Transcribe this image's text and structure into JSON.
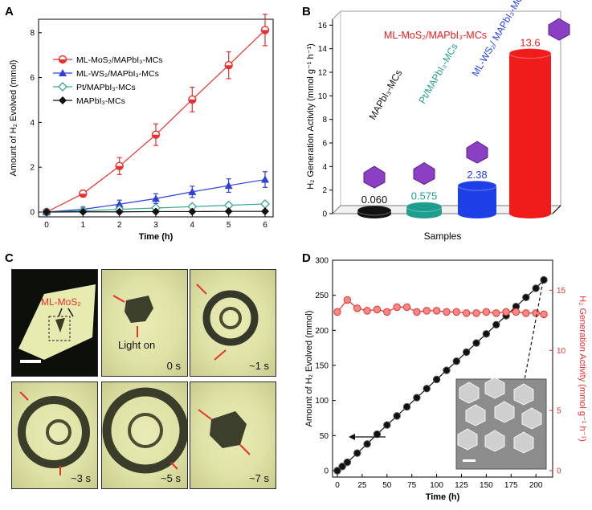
{
  "panels": {
    "a": "A",
    "b": "B",
    "c": "C",
    "d": "D"
  },
  "chart_data": [
    {
      "type": "line",
      "panel": "A",
      "xlabel": "Time (h)",
      "ylabel": "Amount of H₂ Evolved (mmol)",
      "xlim": [
        0,
        6
      ],
      "ylim": [
        0,
        8.6
      ],
      "xticks": [
        "0",
        "1",
        "2",
        "3",
        "4",
        "5",
        "6"
      ],
      "yticks": [
        "0",
        "2",
        "4",
        "6",
        "8"
      ],
      "x": [
        0,
        1,
        2,
        3,
        4,
        5,
        6
      ],
      "series": [
        {
          "name": "ML-MoS₂/MAPbI₃-MCs",
          "color": "#e8302e",
          "marker": "circle-half",
          "values": [
            0,
            0.82,
            2.05,
            3.45,
            5.02,
            6.55,
            8.12
          ],
          "errors": [
            0.06,
            0.15,
            0.38,
            0.48,
            0.55,
            0.6,
            0.7
          ]
        },
        {
          "name": "ML-WS₂/MAPbI₃-MCs",
          "color": "#2e3fd8",
          "marker": "triangle",
          "values": [
            0,
            0.12,
            0.35,
            0.6,
            0.9,
            1.18,
            1.45
          ],
          "errors": [
            0.05,
            0.1,
            0.18,
            0.22,
            0.25,
            0.3,
            0.35
          ]
        },
        {
          "name": "Pt/MAPbI₃-MCs",
          "color": "#3aa595",
          "marker": "diamond-open",
          "values": [
            0,
            0.05,
            0.12,
            0.18,
            0.24,
            0.3,
            0.36
          ],
          "errors": [
            0.03,
            0.04,
            0.06,
            0.08,
            0.09,
            0.1,
            0.11
          ]
        },
        {
          "name": "MAPbI₃-MCs",
          "color": "#111111",
          "marker": "diamond",
          "values": [
            0,
            0.01,
            0.01,
            0.02,
            0.02,
            0.03,
            0.03
          ],
          "errors": [
            0,
            0,
            0,
            0,
            0,
            0,
            0
          ]
        }
      ]
    },
    {
      "type": "bar",
      "panel": "B",
      "xlabel": "Samples",
      "ylabel": "H₂ Generation Activity (mmol g⁻¹ h⁻¹)",
      "ylim": [
        0,
        16.5
      ],
      "yticks": [
        "0",
        "2",
        "4",
        "6",
        "8",
        "10",
        "12",
        "14",
        "16"
      ],
      "categories": [
        "MAPbI₃-MCs",
        "Pt/MAPbI₃-MCs",
        "ML-WS₂/ MAPbI₃-MCs",
        "ML-MoS₂/MAPbI₃-MCs"
      ],
      "values": [
        0.06,
        0.575,
        2.38,
        13.6
      ],
      "value_labels": [
        "0.060",
        "0.575",
        "2.38",
        "13.6"
      ],
      "colors": [
        "#111111",
        "#1f9e8e",
        "#1e3ee8",
        "#f01c1c"
      ]
    },
    {
      "type": "line",
      "panel": "D",
      "xlabel": "Time (h)",
      "ylabel_left": "Amount of H₂ Evolved (mmol)",
      "ylabel_right": "H₂ Generation Activity (mmol g⁻¹ h⁻¹)",
      "xlim": [
        0,
        212
      ],
      "ylim_left": [
        0,
        300
      ],
      "ylim_right": [
        0,
        17.5
      ],
      "xticks": [
        "0",
        "25",
        "50",
        "75",
        "100",
        "125",
        "150",
        "175",
        "200"
      ],
      "yticks_left": [
        "0",
        "50",
        "100",
        "150",
        "200",
        "250",
        "300"
      ],
      "yticks_right": [
        "0",
        "5",
        "10",
        "15"
      ],
      "series": [
        {
          "name": "Amount of H₂ Evolved",
          "axis": "left",
          "color": "#111111",
          "x": [
            0,
            5,
            10,
            20,
            30,
            40,
            50,
            60,
            70,
            80,
            90,
            100,
            110,
            120,
            130,
            140,
            150,
            160,
            170,
            180,
            190,
            200,
            208
          ],
          "values": [
            0,
            6,
            12,
            25,
            38,
            52,
            65,
            78,
            91,
            104,
            117,
            130,
            143,
            156,
            169,
            182,
            195,
            208,
            221,
            234,
            247,
            260,
            272
          ]
        },
        {
          "name": "H₂ Generation Activity",
          "axis": "right",
          "color": "#e8302e",
          "x": [
            0,
            10,
            20,
            30,
            40,
            50,
            60,
            70,
            80,
            90,
            100,
            110,
            120,
            130,
            140,
            150,
            160,
            170,
            180,
            190,
            200,
            208
          ],
          "values": [
            13.2,
            14.2,
            13.5,
            13.3,
            13.4,
            13.2,
            13.6,
            13.6,
            13.2,
            13.3,
            13.3,
            13.2,
            13.2,
            13.1,
            13.1,
            13.2,
            13.1,
            13.2,
            13.2,
            13.1,
            13.1,
            13.0
          ]
        }
      ]
    }
  ],
  "micrographs": [
    {
      "label": "ML-MoS₂",
      "time": ""
    },
    {
      "label": "Light on",
      "time": "0 s"
    },
    {
      "time": "~1 s"
    },
    {
      "time": "~3 s"
    },
    {
      "time": "~5 s"
    },
    {
      "time": "~7 s"
    }
  ]
}
